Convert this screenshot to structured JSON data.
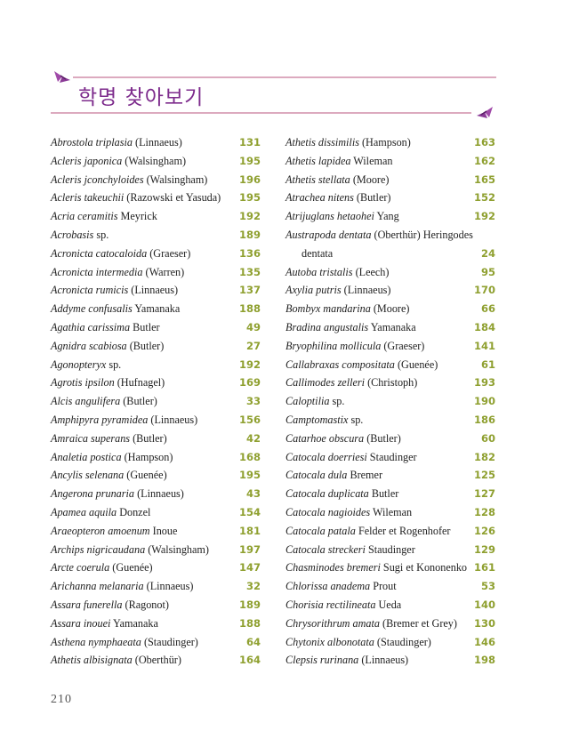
{
  "header": {
    "title": "학명 찾아보기",
    "accent_color": "#7d2b8c",
    "rule_color": "#dcaabf",
    "decoration": "moth-icon"
  },
  "left_column": [
    {
      "sci": "Abrostola triplasia",
      "author": "(Linnaeus)",
      "page": "131"
    },
    {
      "sci": "Acleris japonica",
      "author": "(Walsingham)",
      "page": "195"
    },
    {
      "sci": "Acleris jconchyloides",
      "author": "(Walsingham)",
      "page": "196"
    },
    {
      "sci": "Acleris takeuchii",
      "author": "(Razowski et Yasuda)",
      "page": "195"
    },
    {
      "sci": "Acria ceramitis",
      "author": "Meyrick",
      "page": "192"
    },
    {
      "sci": "Acrobasis",
      "author": "sp.",
      "page": "189"
    },
    {
      "sci": "Acronicta catocaloida",
      "author": "(Graeser)",
      "page": "136"
    },
    {
      "sci": "Acronicta intermedia",
      "author": "(Warren)",
      "page": "135"
    },
    {
      "sci": "Acronicta rumicis",
      "author": "(Linnaeus)",
      "page": "137"
    },
    {
      "sci": "Addyme confusalis",
      "author": "Yamanaka",
      "page": "188"
    },
    {
      "sci": "Agathia carissima",
      "author": "Butler",
      "page": "49"
    },
    {
      "sci": "Agnidra scabiosa",
      "author": "(Butler)",
      "page": "27"
    },
    {
      "sci": "Agonopteryx",
      "author": "sp.",
      "page": "192"
    },
    {
      "sci": "Agrotis ipsilon",
      "author": "(Hufnagel)",
      "page": "169"
    },
    {
      "sci": "Alcis angulifera",
      "author": "(Butler)",
      "page": "33"
    },
    {
      "sci": "Amphipyra pyramidea",
      "author": "(Linnaeus)",
      "page": "156"
    },
    {
      "sci": "Amraica superans",
      "author": "(Butler)",
      "page": "42"
    },
    {
      "sci": "Analetia postica",
      "author": "(Hampson)",
      "page": "168"
    },
    {
      "sci": "Ancylis selenana",
      "author": "(Guenée)",
      "page": "195"
    },
    {
      "sci": "Angerona prunaria",
      "author": "(Linnaeus)",
      "page": "43"
    },
    {
      "sci": "Apamea aquila",
      "author": "Donzel",
      "page": "154"
    },
    {
      "sci": "Araeopteron amoenum",
      "author": "Inoue",
      "page": "181"
    },
    {
      "sci": "Archips nigricaudana",
      "author": "(Walsingham)",
      "page": "197"
    },
    {
      "sci": "Arcte coerula",
      "author": "(Guenée)",
      "page": "147"
    },
    {
      "sci": "Arichanna melanaria",
      "author": "(Linnaeus)",
      "page": "32"
    },
    {
      "sci": "Assara funerella",
      "author": "(Ragonot)",
      "page": "189"
    },
    {
      "sci": "Assara inouei",
      "author": "Yamanaka",
      "page": "188"
    },
    {
      "sci": "Asthena nymphaeata",
      "author": "(Staudinger)",
      "page": "64"
    },
    {
      "sci": "Athetis albisignata",
      "author": "(Oberthür)",
      "page": "164"
    }
  ],
  "right_column": [
    {
      "sci": "Athetis dissimilis",
      "author": "(Hampson)",
      "page": "163"
    },
    {
      "sci": "Athetis lapidea",
      "author": "Wileman",
      "page": "162"
    },
    {
      "sci": "Athetis stellata",
      "author": "(Moore)",
      "page": "165"
    },
    {
      "sci": "Atrachea nitens",
      "author": "(Butler)",
      "page": "152"
    },
    {
      "sci": "Atrijuglans hetaohei",
      "author": "Yang",
      "page": "192"
    },
    {
      "sci": "Austrapoda dentata",
      "author": "(Oberthür) Heringodes",
      "continuation": "dentata",
      "page": "24"
    },
    {
      "sci": "Autoba tristalis",
      "author": "(Leech)",
      "page": "95"
    },
    {
      "sci": "Axylia putris",
      "author": "(Linnaeus)",
      "page": "170"
    },
    {
      "sci": "Bombyx mandarina",
      "author": "(Moore)",
      "page": "66"
    },
    {
      "sci": "Bradina angustalis",
      "author": "Yamanaka",
      "page": "184"
    },
    {
      "sci": "Bryophilina mollicula",
      "author": "(Graeser)",
      "page": "141"
    },
    {
      "sci": "Callabraxas compositata",
      "author": "(Guenée)",
      "page": "61"
    },
    {
      "sci": "Callimodes zelleri",
      "author": "(Christoph)",
      "page": "193"
    },
    {
      "sci": "Caloptilia",
      "author": "sp.",
      "page": "190"
    },
    {
      "sci": "Camptomastix",
      "author": "sp.",
      "page": "186"
    },
    {
      "sci": "Catarhoe obscura",
      "author": "(Butler)",
      "page": "60"
    },
    {
      "sci": "Catocala doerriesi",
      "author": "Staudinger",
      "page": "182"
    },
    {
      "sci": "Catocala dula",
      "author": "Bremer",
      "page": "125"
    },
    {
      "sci": "Catocala duplicata",
      "author": "Butler",
      "page": "127"
    },
    {
      "sci": "Catocala nagioides",
      "author": "Wileman",
      "page": "128"
    },
    {
      "sci": "Catocala patala",
      "author": "Felder et Rogenhofer",
      "page": "126"
    },
    {
      "sci": "Catocala streckeri",
      "author": "Staudinger",
      "page": "129"
    },
    {
      "sci": "Chasminodes bremeri",
      "author": "Sugi et Kononenko",
      "page": "161"
    },
    {
      "sci": "Chlorissa anadema",
      "author": "Prout",
      "page": "53"
    },
    {
      "sci": "Chorisia rectilineata",
      "author": "Ueda",
      "page": "140"
    },
    {
      "sci": "Chrysorithrum amata",
      "author": "(Bremer et Grey)",
      "page": "130"
    },
    {
      "sci": "Chytonix albonotata",
      "author": "(Staudinger)",
      "page": "146"
    },
    {
      "sci": "Clepsis rurinana",
      "author": "(Linnaeus)",
      "page": "198"
    }
  ],
  "footer": {
    "page_number": "210"
  },
  "colors": {
    "page_number_color": "#8fa030"
  }
}
